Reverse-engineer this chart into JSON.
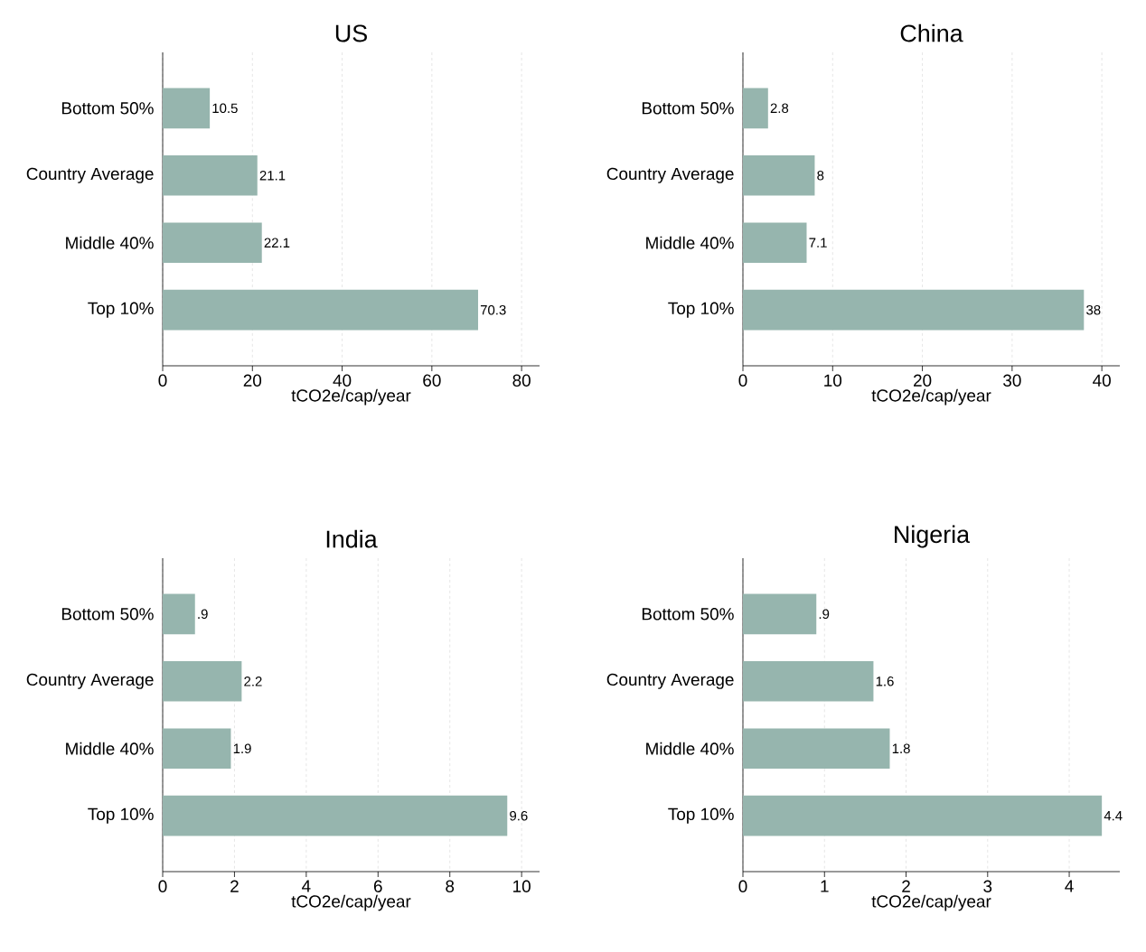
{
  "chart_data": [
    {
      "type": "bar",
      "orientation": "horizontal",
      "title": "US",
      "xlabel": "tCO2e/cap/year",
      "categories": [
        "Bottom 50%",
        "Country Average",
        "Middle 40%",
        "Top 10%"
      ],
      "values": [
        10.5,
        21.1,
        22.1,
        70.3
      ],
      "value_labels": [
        "10.5",
        "21.1",
        "22.1",
        "70.3"
      ],
      "color": "#96b5ae",
      "xlim": [
        0,
        84
      ],
      "xticks": [
        0,
        20,
        40,
        60,
        80
      ],
      "grid": "x"
    },
    {
      "type": "bar",
      "orientation": "horizontal",
      "title": "China",
      "xlabel": "tCO2e/cap/year",
      "categories": [
        "Bottom 50%",
        "Country Average",
        "Middle 40%",
        "Top 10%"
      ],
      "values": [
        2.8,
        8,
        7.1,
        38
      ],
      "value_labels": [
        "2.8",
        "8",
        "7.1",
        "38"
      ],
      "color": "#96b5ae",
      "xlim": [
        0,
        42
      ],
      "xticks": [
        0,
        10,
        20,
        30,
        40
      ],
      "grid": "x"
    },
    {
      "type": "bar",
      "orientation": "horizontal",
      "title": "India",
      "xlabel": "tCO2e/cap/year",
      "categories": [
        "Bottom 50%",
        "Country Average",
        "Middle 40%",
        "Top 10%"
      ],
      "values": [
        0.9,
        2.2,
        1.9,
        9.6
      ],
      "value_labels": [
        ".9",
        "2.2",
        "1.9",
        "9.6"
      ],
      "color": "#96b5ae",
      "xlim": [
        0,
        10.5
      ],
      "xticks": [
        0,
        2,
        4,
        6,
        8,
        10
      ],
      "grid": "x"
    },
    {
      "type": "bar",
      "orientation": "horizontal",
      "title": "Nigeria",
      "xlabel": "tCO2e/cap/year",
      "categories": [
        "Bottom 50%",
        "Country Average",
        "Middle 40%",
        "Top 10%"
      ],
      "values": [
        0.9,
        1.6,
        1.8,
        4.4
      ],
      "value_labels": [
        ".9",
        "1.6",
        "1.8",
        "4.4"
      ],
      "color": "#96b5ae",
      "xlim": [
        0,
        4.62
      ],
      "xticks": [
        0,
        1,
        2,
        3,
        4
      ],
      "grid": "x"
    }
  ]
}
